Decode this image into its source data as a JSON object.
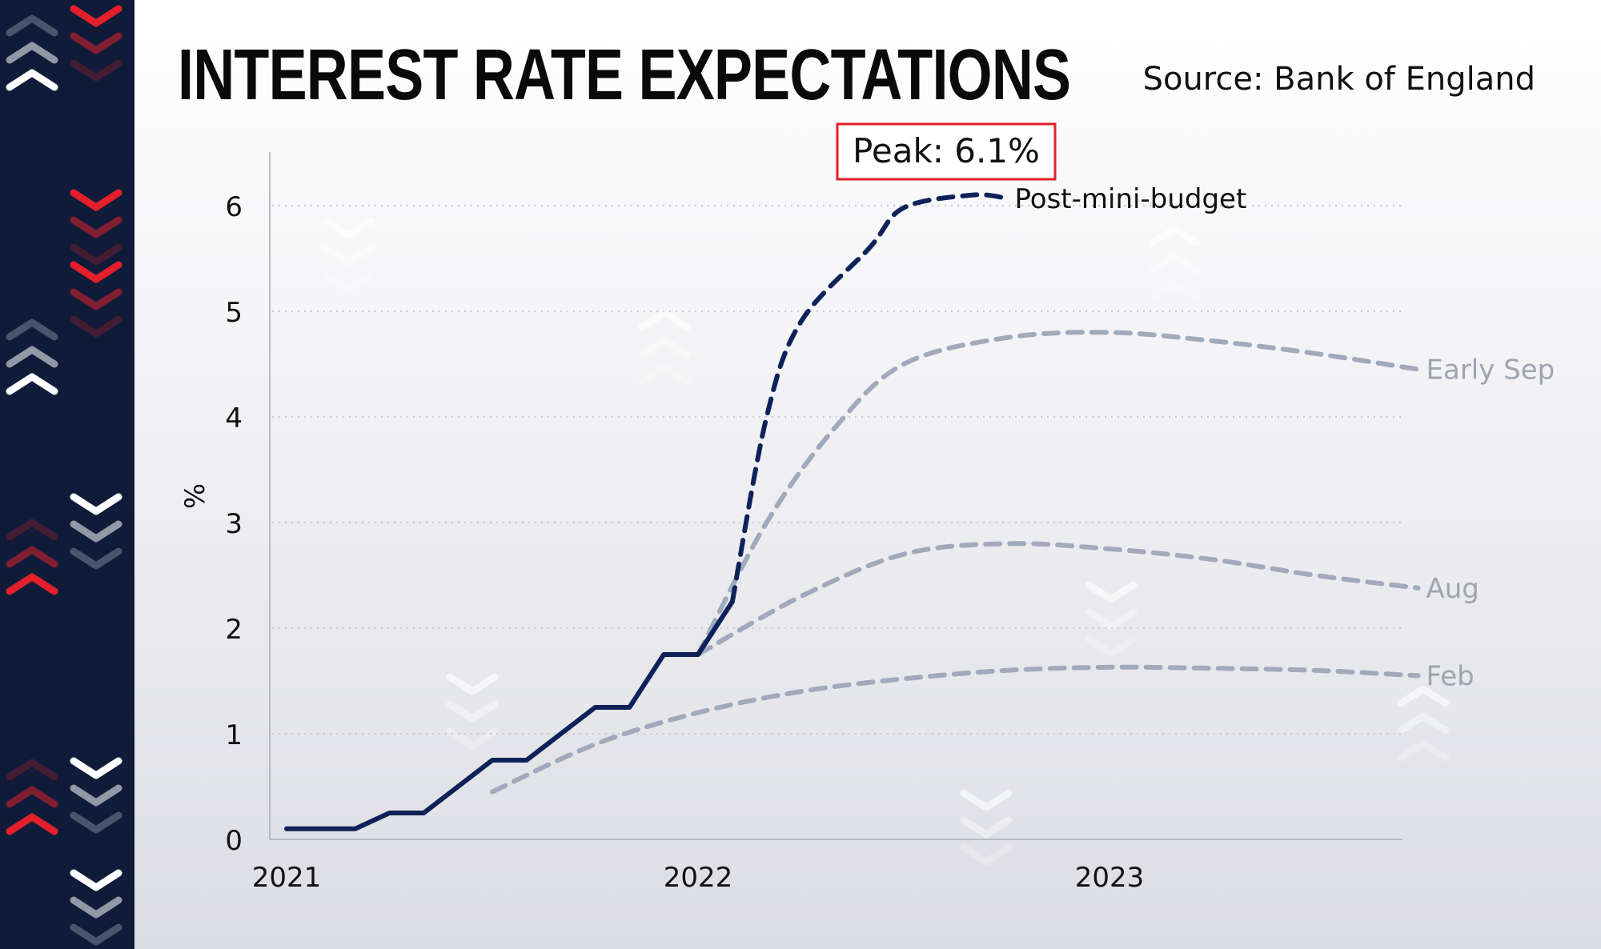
{
  "title": "INTEREST RATE EXPECTATIONS",
  "source": "Source: Bank of England",
  "colors": {
    "sidebar": "#0f1b39",
    "accent_red": "#e32029",
    "actual": "#0e2259",
    "scenario": "#a1a9bc",
    "scenario_label": "#9ea4af"
  },
  "chart_data": {
    "type": "line",
    "ylabel": "%",
    "xlabel": "",
    "ylim": [
      0,
      6.5
    ],
    "yticks": [
      0,
      1,
      2,
      3,
      4,
      5,
      6
    ],
    "xticks": [
      "2021",
      "2022",
      "2023"
    ],
    "grid": "horizontal dotted",
    "annotation": "Peak: 6.1%",
    "series": [
      {
        "name": "",
        "style": "solid",
        "points": [
          [
            "2021-01",
            0.1
          ],
          [
            "2021-03",
            0.1
          ],
          [
            "2021-04",
            0.25
          ],
          [
            "2021-05",
            0.25
          ],
          [
            "2021-07",
            0.75
          ],
          [
            "2021-08",
            0.75
          ],
          [
            "2021-10",
            1.25
          ],
          [
            "2021-11",
            1.25
          ],
          [
            "2021-12",
            1.75
          ],
          [
            "2022-01",
            1.75
          ],
          [
            "2022-02",
            2.25
          ]
        ]
      },
      {
        "name": "Feb",
        "style": "dashed",
        "points": [
          [
            "2021-07",
            0.45
          ],
          [
            "2021-10",
            0.9
          ],
          [
            "2022-01",
            1.2
          ],
          [
            "2022-04",
            1.4
          ],
          [
            "2022-07",
            1.52
          ],
          [
            "2022-10",
            1.6
          ],
          [
            "2023-01",
            1.63
          ],
          [
            "2023-04",
            1.62
          ],
          [
            "2023-07",
            1.6
          ],
          [
            "2023-10",
            1.55
          ]
        ]
      },
      {
        "name": "Aug",
        "style": "dashed",
        "points": [
          [
            "2022-01",
            1.75
          ],
          [
            "2022-04",
            2.3
          ],
          [
            "2022-07",
            2.7
          ],
          [
            "2022-10",
            2.8
          ],
          [
            "2023-01",
            2.75
          ],
          [
            "2023-04",
            2.65
          ],
          [
            "2023-07",
            2.5
          ],
          [
            "2023-10",
            2.38
          ]
        ]
      },
      {
        "name": "Early Sep",
        "style": "dashed",
        "points": [
          [
            "2022-01",
            1.75
          ],
          [
            "2022-03",
            3.0
          ],
          [
            "2022-05",
            3.9
          ],
          [
            "2022-07",
            4.5
          ],
          [
            "2022-10",
            4.75
          ],
          [
            "2023-01",
            4.8
          ],
          [
            "2023-04",
            4.72
          ],
          [
            "2023-07",
            4.6
          ],
          [
            "2023-10",
            4.45
          ]
        ]
      },
      {
        "name": "Post-mini-budget",
        "style": "dashed",
        "points": [
          [
            "2022-02",
            2.25
          ],
          [
            "2022-03",
            4.0
          ],
          [
            "2022-04",
            4.9
          ],
          [
            "2022-06",
            5.6
          ],
          [
            "2022-07",
            5.98
          ],
          [
            "2022-09",
            6.1
          ],
          [
            "2022-10",
            6.07
          ]
        ]
      }
    ]
  }
}
